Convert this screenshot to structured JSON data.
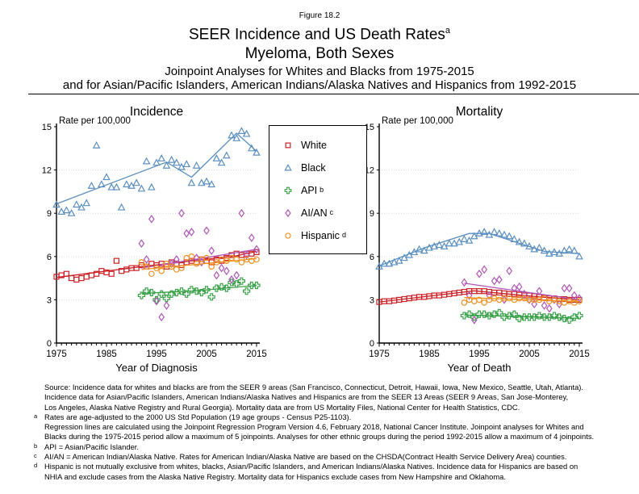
{
  "figure_label": "Figure 18.2",
  "title": {
    "main": "SEER Incidence and US Death Rates",
    "main_sup": "a",
    "sub": "Myeloma, Both Sexes",
    "line3": "Joinpoint Analyses for Whites and Blacks from 1975-2015",
    "line4": "and for Asian/Pacific Islanders, American Indians/Alaska Natives and Hispanics from 1992-2015"
  },
  "colors": {
    "white_series": "#cb2026",
    "black_series": "#5b8fc0",
    "api_series": "#3ba24b",
    "aian_series": "#b056b8",
    "hispanic_series": "#ef9221",
    "grid": "#d9d9d9",
    "axis": "#000000"
  },
  "legend": {
    "items": [
      {
        "label": "White",
        "sup": "",
        "marker": "square",
        "color": "#cb2026"
      },
      {
        "label": "Black",
        "sup": "",
        "marker": "triangle",
        "color": "#5b8fc0"
      },
      {
        "label": "API",
        "sup": "b",
        "marker": "plus",
        "color": "#3ba24b"
      },
      {
        "label": "AI/AN",
        "sup": "c",
        "marker": "diamond",
        "color": "#b056b8"
      },
      {
        "label": "Hispanic",
        "sup": "d",
        "marker": "circle",
        "color": "#ef9221"
      }
    ]
  },
  "chart_data": [
    {
      "type": "scatter",
      "title": "Incidence",
      "ylabel": "Rate per 100,000",
      "xlabel": "Year of Diagnosis",
      "xlim": [
        1975,
        2015
      ],
      "ylim": [
        0,
        15
      ],
      "yticks": [
        0,
        3,
        6,
        9,
        12,
        15
      ],
      "xticks": [
        1975,
        1985,
        1995,
        2005,
        2015
      ],
      "gridlines_y": [
        3,
        6,
        9,
        12
      ],
      "legend_position": "right of plot (shared box between charts)",
      "series": [
        {
          "name": "White",
          "marker": "square",
          "color": "#cb2026",
          "x_start": 1975,
          "values": [
            4.6,
            4.7,
            4.8,
            4.5,
            4.4,
            4.5,
            4.6,
            4.7,
            4.8,
            5.0,
            4.9,
            4.8,
            5.7,
            5.0,
            5.1,
            5.2,
            5.2,
            5.4,
            5.3,
            5.5,
            5.4,
            5.5,
            5.3,
            5.6,
            5.5,
            5.4,
            5.6,
            5.7,
            5.6,
            5.8,
            5.7,
            5.6,
            5.8,
            5.7,
            5.9,
            6.1,
            6.2,
            6.1,
            6.2,
            6.2,
            6.3
          ],
          "trend": [
            [
              1975,
              4.55
            ],
            [
              1992,
              5.3
            ],
            [
              2011,
              6.05
            ],
            [
              2015,
              6.35
            ]
          ]
        },
        {
          "name": "Black",
          "marker": "triangle",
          "color": "#5b8fc0",
          "x_start": 1975,
          "values": [
            9.6,
            9.1,
            9.2,
            9.0,
            9.6,
            9.4,
            9.7,
            10.9,
            13.7,
            11.0,
            11.5,
            10.8,
            10.8,
            9.4,
            11.0,
            10.9,
            11.1,
            10.7,
            12.6,
            10.8,
            12.5,
            12.8,
            12.3,
            12.7,
            12.5,
            12.2,
            12.4,
            11.1,
            12.3,
            11.1,
            11.2,
            11.0,
            12.8,
            12.5,
            13.0,
            14.4,
            14.2,
            14.7,
            14.5,
            13.5,
            13.2
          ],
          "trend": [
            [
              1975,
              9.65
            ],
            [
              1997,
              12.55
            ],
            [
              2002,
              11.5
            ],
            [
              2011,
              14.55
            ],
            [
              2015,
              13.3
            ]
          ]
        },
        {
          "name": "API",
          "marker": "plus",
          "color": "#3ba24b",
          "x_start": 1992,
          "values": [
            3.3,
            3.6,
            3.5,
            3.0,
            3.4,
            3.1,
            3.4,
            3.5,
            3.6,
            3.4,
            3.7,
            3.6,
            3.5,
            3.7,
            3.2,
            3.8,
            3.9,
            3.8,
            4.2,
            4.1,
            4.3,
            3.6,
            4.0,
            4.0
          ],
          "trend": [
            [
              1992,
              3.45
            ],
            [
              2002,
              3.6
            ],
            [
              2015,
              4.0
            ]
          ]
        },
        {
          "name": "AI/AN",
          "marker": "diamond",
          "color": "#b056b8",
          "x_start": 1992,
          "values": [
            6.9,
            5.8,
            8.6,
            2.9,
            1.8,
            2.6,
            5.5,
            5.8,
            9.0,
            7.6,
            7.7,
            5.9,
            5.6,
            7.8,
            6.4,
            4.7,
            5.2,
            5.0,
            4.4,
            4.7,
            9.0,
            6.1,
            7.3,
            6.5
          ],
          "trend": [
            [
              1992,
              5.2
            ],
            [
              2015,
              6.5
            ]
          ]
        },
        {
          "name": "Hispanic",
          "marker": "circle",
          "color": "#ef9221",
          "x_start": 1992,
          "values": [
            5.6,
            5.3,
            4.8,
            5.2,
            5.0,
            5.5,
            5.3,
            5.1,
            5.2,
            5.9,
            6.0,
            5.5,
            5.8,
            5.9,
            5.3,
            5.6,
            5.8,
            5.7,
            5.9,
            5.8,
            5.6,
            5.8,
            5.7,
            5.8
          ],
          "trend": [
            [
              1992,
              5.1
            ],
            [
              2015,
              5.85
            ]
          ]
        }
      ]
    },
    {
      "type": "scatter",
      "title": "Mortality",
      "ylabel": "Rate per 100,000",
      "xlabel": "Year of Death",
      "xlim": [
        1975,
        2015
      ],
      "ylim": [
        0,
        15
      ],
      "yticks": [
        0,
        3,
        6,
        9,
        12,
        15
      ],
      "xticks": [
        1975,
        1985,
        1995,
        2005,
        2015
      ],
      "gridlines_y": [
        3,
        6,
        9,
        12
      ],
      "series": [
        {
          "name": "White",
          "marker": "square",
          "color": "#cb2026",
          "x_start": 1975,
          "values": [
            2.85,
            2.9,
            2.9,
            2.95,
            3.0,
            3.05,
            3.1,
            3.15,
            3.2,
            3.2,
            3.25,
            3.3,
            3.3,
            3.35,
            3.4,
            3.45,
            3.5,
            3.55,
            3.6,
            3.6,
            3.6,
            3.6,
            3.55,
            3.5,
            3.5,
            3.45,
            3.4,
            3.4,
            3.35,
            3.3,
            3.3,
            3.25,
            3.2,
            3.15,
            3.1,
            3.1,
            3.05,
            3.05,
            3.0,
            3.0,
            3.0
          ],
          "trend": [
            [
              1975,
              2.85
            ],
            [
              1994,
              3.62
            ],
            [
              2007,
              3.2
            ],
            [
              2015,
              3.0
            ]
          ]
        },
        {
          "name": "Black",
          "marker": "triangle",
          "color": "#5b8fc0",
          "x_start": 1975,
          "values": [
            5.3,
            5.5,
            5.5,
            5.6,
            5.7,
            5.9,
            6.1,
            6.3,
            6.5,
            6.4,
            6.6,
            6.7,
            6.8,
            6.7,
            6.9,
            6.9,
            7.0,
            7.2,
            7.1,
            7.4,
            7.6,
            7.7,
            7.5,
            7.7,
            7.6,
            7.5,
            7.4,
            7.2,
            7.0,
            6.9,
            6.7,
            6.5,
            6.6,
            6.4,
            6.2,
            6.3,
            6.2,
            6.4,
            6.5,
            6.4,
            6.0
          ],
          "trend": [
            [
              1975,
              5.35
            ],
            [
              1984,
              6.6
            ],
            [
              1993,
              7.6
            ],
            [
              1997,
              7.6
            ],
            [
              2008,
              6.35
            ],
            [
              2015,
              6.2
            ]
          ]
        },
        {
          "name": "API",
          "marker": "plus",
          "color": "#3ba24b",
          "x_start": 1992,
          "values": [
            1.9,
            2.0,
            1.8,
            2.0,
            2.0,
            1.9,
            2.0,
            2.1,
            1.8,
            1.9,
            2.0,
            1.7,
            1.8,
            1.8,
            1.8,
            1.9,
            1.8,
            1.8,
            1.9,
            1.8,
            1.7,
            1.6,
            1.8,
            1.9
          ],
          "trend": [
            [
              1992,
              1.95
            ],
            [
              2015,
              1.72
            ]
          ]
        },
        {
          "name": "AI/AN",
          "marker": "diamond",
          "color": "#b056b8",
          "x_start": 1992,
          "values": [
            4.2,
            3.3,
            1.6,
            4.8,
            5.1,
            3.3,
            4.3,
            4.4,
            3.0,
            5.0,
            3.8,
            3.9,
            3.4,
            3.0,
            2.7,
            3.6,
            2.6,
            2.4,
            3.0,
            2.7,
            3.8,
            3.8,
            3.3,
            3.1
          ],
          "trend": [
            [
              1992,
              4.15
            ],
            [
              2015,
              3.0
            ]
          ]
        },
        {
          "name": "Hispanic",
          "marker": "circle",
          "color": "#ef9221",
          "x_start": 1992,
          "values": [
            2.8,
            3.0,
            2.9,
            3.0,
            2.8,
            3.0,
            3.1,
            3.0,
            3.1,
            3.1,
            3.0,
            3.1,
            3.1,
            3.0,
            3.0,
            3.0,
            3.1,
            2.9,
            3.0,
            2.9,
            2.8,
            2.9,
            2.8,
            2.9
          ],
          "trend": [
            [
              1992,
              3.15
            ],
            [
              2015,
              2.88
            ]
          ]
        }
      ]
    }
  ],
  "footnotes": [
    {
      "marker": "",
      "text": "Source:  Incidence data for whites and blacks are from the SEER 9 areas (San Francisco, Connecticut, Detroit, Hawaii, Iowa, New Mexico, Seattle, Utah, Atlanta)."
    },
    {
      "marker": "",
      "text": "Incidence data for Asian/Pacific Islanders, American Indians/Alaska Natives and Hispanics are from the SEER 13 Areas (SEER 9 Areas, San Jose-Monterey,"
    },
    {
      "marker": "",
      "text": "Los Angeles, Alaska Native Registry and Rural Georgia).  Mortality data are from US Mortality Files, National Center for Health Statistics, CDC."
    },
    {
      "marker": "a",
      "text": "Rates are age-adjusted to the 2000 US Std Population (19 age groups - Census P25-1103)."
    },
    {
      "marker": "",
      "text": "Regression lines are calculated using the Joinpoint Regression Program Version 4.6, February 2018, National Cancer Institute.  Joinpoint analyses for Whites and"
    },
    {
      "marker": "",
      "text": "Blacks during the 1975-2015 period allow a maximum of 5 joinpoints. Analyses for other ethnic groups during the period 1992-2015 allow a maximum of 4 joinpoints."
    },
    {
      "marker": "b",
      "text": "API = Asian/Pacific Islander."
    },
    {
      "marker": "c",
      "text": "AI/AN = American Indian/Alaska Native.  Rates for American Indian/Alaska Native are based on the CHSDA(Contract Health Service Delivery Area) counties."
    },
    {
      "marker": "d",
      "text": "Hispanic is not mutually exclusive from whites, blacks, Asian/Pacific Islanders, and American Indians/Alaska Natives.  Incidence data for Hispanics are based on"
    },
    {
      "marker": "",
      "text": "NHIA and exclude cases from the Alaska Native Registry.  Mortality data for Hispanics exclude cases from New Hampshire and Oklahoma."
    }
  ]
}
